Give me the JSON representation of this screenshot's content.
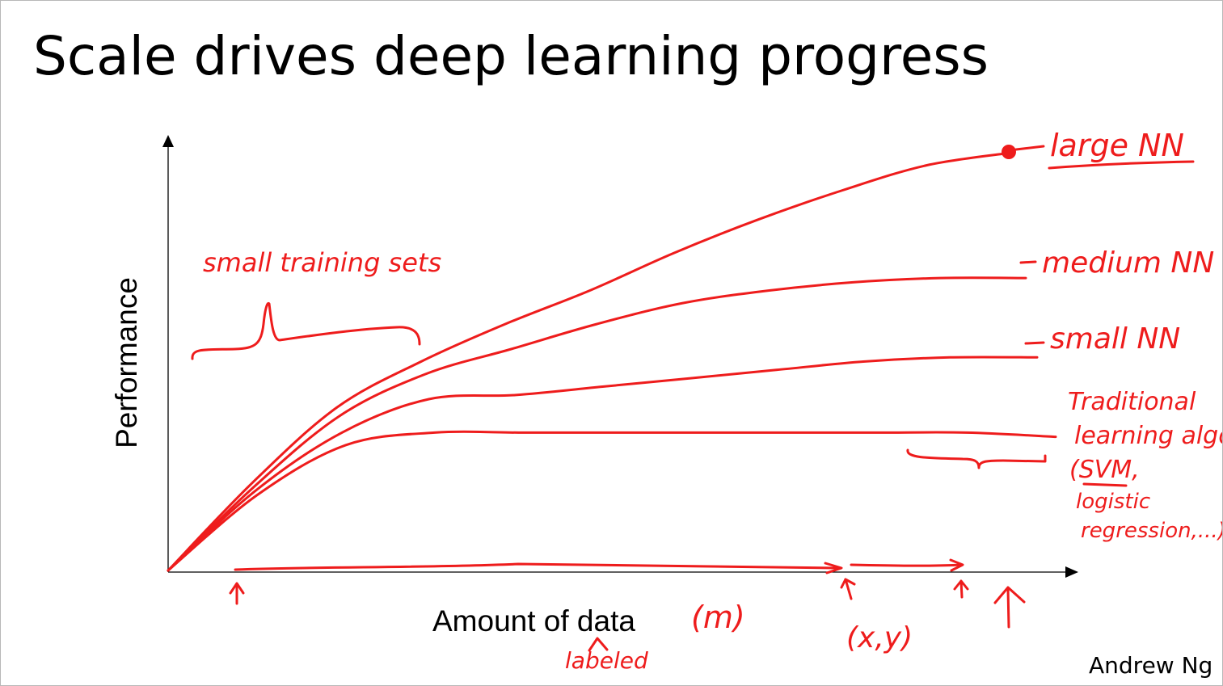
{
  "slide": {
    "title": "Scale drives deep learning progress",
    "author": "Andrew Ng"
  },
  "colors": {
    "ink": "#ee1c1c",
    "axis": "#000000",
    "text": "#000000"
  },
  "chart_data": {
    "type": "line",
    "xlabel": "Amount of data",
    "ylabel": "Performance",
    "grid": false,
    "x": [
      0,
      0.1,
      0.2,
      0.3,
      0.4,
      0.5,
      0.6,
      0.7,
      0.8,
      0.9,
      1.0
    ],
    "series": [
      {
        "name": "large NN",
        "values": [
          0.0,
          0.21,
          0.39,
          0.5,
          0.59,
          0.67,
          0.76,
          0.84,
          0.91,
          0.97,
          1.0
        ]
      },
      {
        "name": "medium NN",
        "values": [
          0.0,
          0.2,
          0.37,
          0.47,
          0.53,
          0.59,
          0.64,
          0.67,
          0.69,
          0.7,
          0.7
        ]
      },
      {
        "name": "small NN",
        "values": [
          0.0,
          0.19,
          0.33,
          0.41,
          0.42,
          0.44,
          0.46,
          0.48,
          0.5,
          0.51,
          0.51
        ]
      },
      {
        "name": "Traditional learning algo (SVM, logistic regression,...)",
        "values": [
          0.0,
          0.18,
          0.3,
          0.33,
          0.33,
          0.33,
          0.33,
          0.33,
          0.33,
          0.33,
          0.32
        ]
      }
    ]
  },
  "annotations": {
    "small_training_sets": "small training sets",
    "m": "(m)",
    "labeled": "labeled",
    "xy": "(x,y)",
    "large_nn": "large NN",
    "medium_nn": "medium NN",
    "small_nn": "small NN",
    "traditional_1": "Traditional",
    "traditional_2": "learning algo",
    "traditional_3": "(SVM,",
    "traditional_4": "logistic",
    "traditional_5": "regression,...)"
  }
}
